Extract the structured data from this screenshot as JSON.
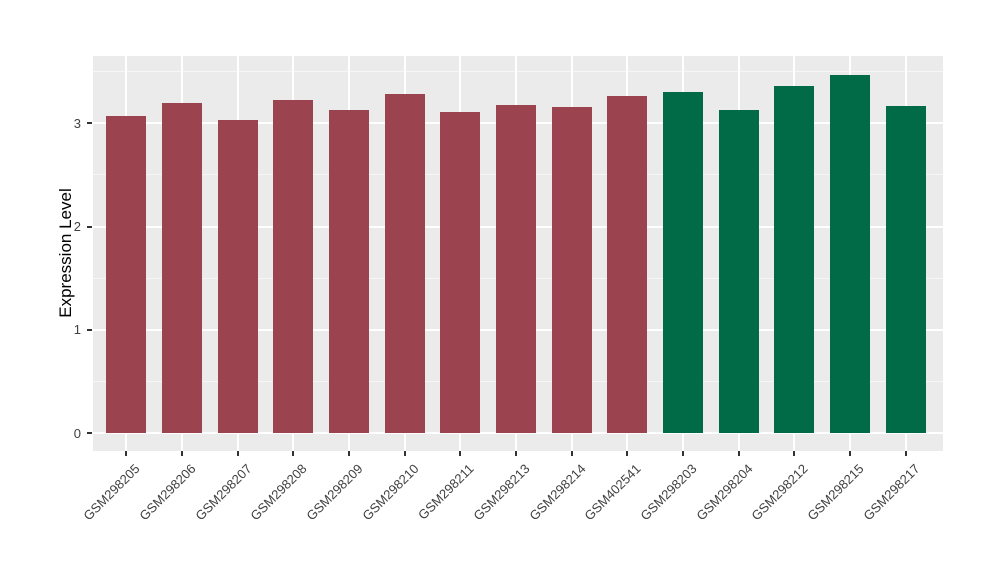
{
  "chart_data": {
    "type": "bar",
    "title": "",
    "xlabel": "",
    "ylabel": "Expression Level",
    "categories": [
      "GSM298205",
      "GSM298206",
      "GSM298207",
      "GSM298208",
      "GSM298209",
      "GSM298210",
      "GSM298211",
      "GSM298213",
      "GSM298214",
      "GSM402541",
      "GSM298203",
      "GSM298204",
      "GSM298212",
      "GSM298215",
      "GSM298217"
    ],
    "values": [
      3.07,
      3.2,
      3.03,
      3.23,
      3.13,
      3.28,
      3.11,
      3.18,
      3.16,
      3.26,
      3.3,
      3.13,
      3.36,
      3.47,
      3.17
    ],
    "groups": [
      "maroon",
      "maroon",
      "maroon",
      "maroon",
      "maroon",
      "maroon",
      "maroon",
      "maroon",
      "maroon",
      "maroon",
      "green",
      "green",
      "green",
      "green",
      "green"
    ],
    "group_colors": {
      "maroon": "#9B4450",
      "green": "#006B46"
    },
    "yticks": [
      0,
      1,
      2,
      3
    ],
    "minor_yticks": [
      0.5,
      1.5,
      2.5,
      3.5
    ],
    "ylim": [
      0,
      3.65
    ],
    "grid": "on",
    "legend": "none",
    "panel_background": "#EBEBEB",
    "gridline_color": "#FFFFFF",
    "axis_text_color": "#404040"
  }
}
